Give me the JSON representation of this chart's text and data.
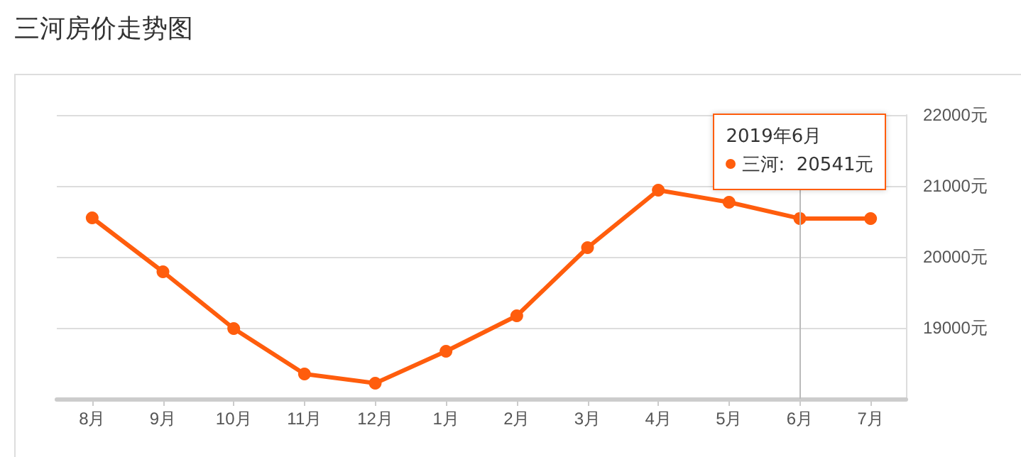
{
  "chart_data": {
    "type": "line",
    "title": "三河房价走势图",
    "categories": [
      "8月",
      "9月",
      "10月",
      "11月",
      "12月",
      "1月",
      "2月",
      "3月",
      "4月",
      "5月",
      "6月",
      "7月"
    ],
    "series": [
      {
        "color": "#ff5d0d",
        "values": [
          20550,
          19790,
          18990,
          18350,
          18220,
          18670,
          19170,
          20130,
          20940,
          20770,
          20541,
          20540
        ]
      }
    ],
    "ylim": [
      18000,
      22000
    ],
    "yticks": [
      {
        "value": 19000,
        "label": "19000元"
      },
      {
        "value": 20000,
        "label": "20000元"
      },
      {
        "value": 21000,
        "label": "21000元"
      },
      {
        "value": 22000,
        "label": "22000元"
      }
    ],
    "grid": "y",
    "marker": "circle",
    "line_style": "solid",
    "ref_lines": [
      {
        "axis": "x",
        "value": "6月",
        "color": "#bbbbbb"
      }
    ],
    "annotations": [
      "2019年6月",
      "三河:  20541元"
    ]
  }
}
